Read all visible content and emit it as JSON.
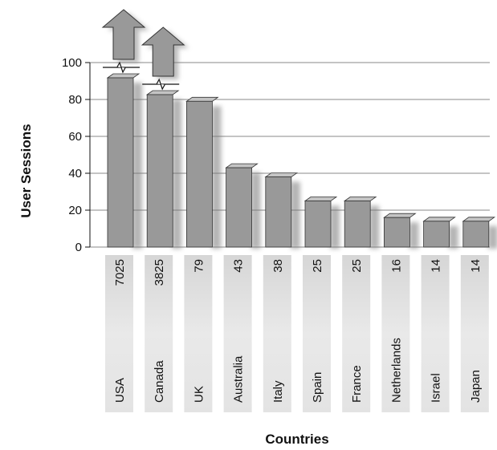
{
  "chart_data": {
    "type": "bar",
    "title": "",
    "xlabel": "Countries",
    "ylabel": "User Sessions",
    "ylim": [
      0,
      100
    ],
    "yticks": [
      0,
      20,
      40,
      60,
      80,
      100
    ],
    "grid": true,
    "categories": [
      "USA",
      "Canada",
      "UK",
      "Australia",
      "Italy",
      "Spain",
      "France",
      "Netherlands",
      "Israel",
      "Japan"
    ],
    "values": [
      7025,
      3825,
      79,
      43,
      38,
      25,
      25,
      16,
      14,
      14
    ],
    "value_labels": [
      "7025",
      "3825",
      "79",
      "43",
      "38",
      "25",
      "25",
      "16",
      "14",
      "14"
    ],
    "clipped": [
      true,
      true,
      false,
      false,
      false,
      false,
      false,
      false,
      false,
      false
    ],
    "bar_color": "#999999",
    "cell_color": "#e3e3e3"
  }
}
